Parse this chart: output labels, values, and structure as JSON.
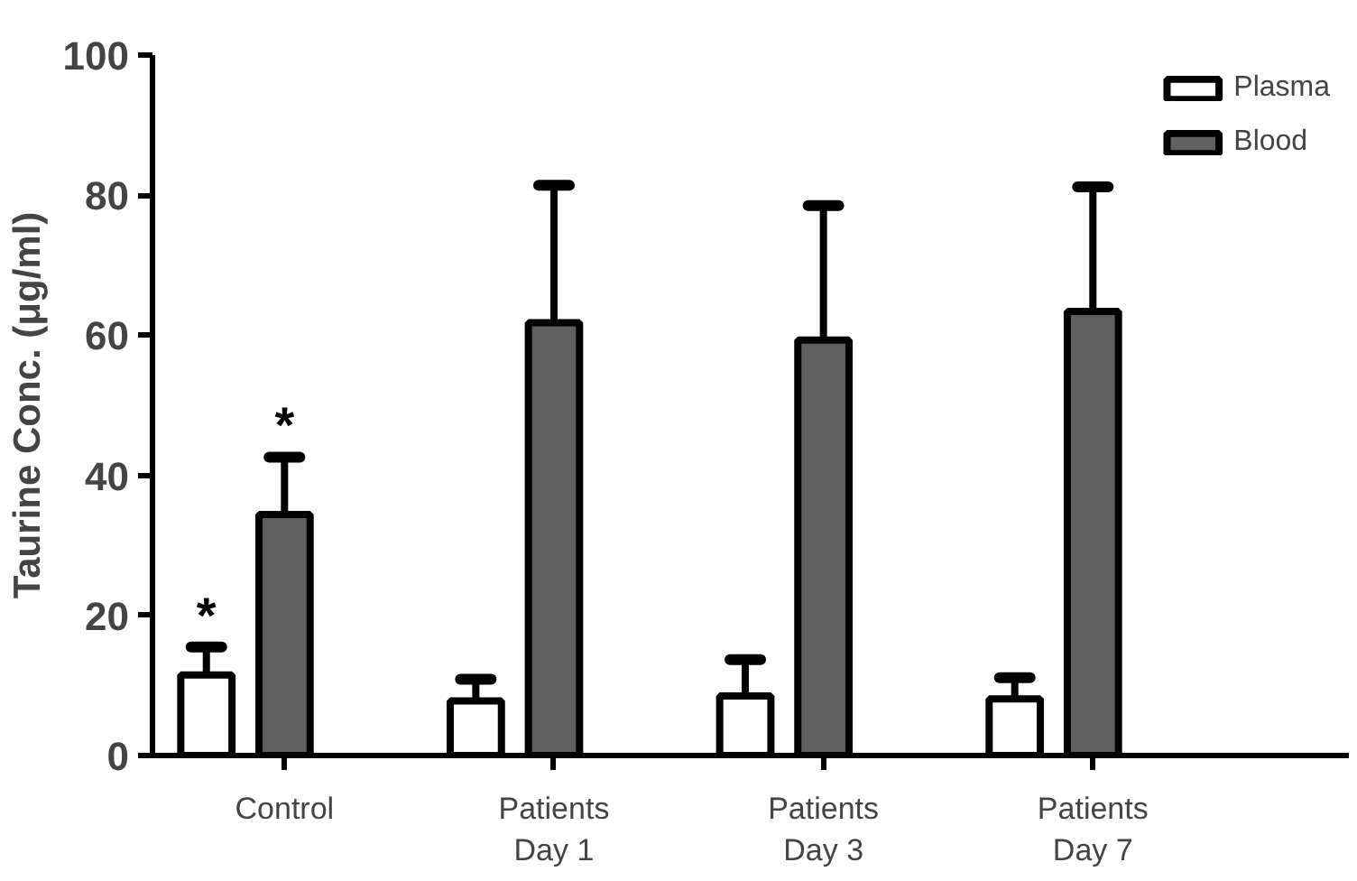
{
  "chart_data": {
    "type": "bar",
    "ylabel": "Taurine Conc. (μg/ml)",
    "categories": [
      "Control",
      "Patients\nDay 1",
      "Patients\nDay 3",
      "Patients\nDay 7"
    ],
    "series": [
      {
        "name": "Plasma",
        "color": "#ffffff",
        "values": [
          11.5,
          7.8,
          8.5,
          8.1
        ],
        "errors": [
          4,
          3.1,
          5.2,
          3
        ]
      },
      {
        "name": "Blood",
        "color": "#606060",
        "values": [
          34.4,
          61.8,
          59.3,
          63.4
        ],
        "errors": [
          8.2,
          19.6,
          19.2,
          17.8
        ]
      }
    ],
    "ylim": [
      0,
      100
    ],
    "yticks": [
      0,
      20,
      40,
      60,
      80,
      100
    ],
    "grid": false,
    "legend": "top right",
    "annotations": [
      "*",
      "*"
    ]
  }
}
